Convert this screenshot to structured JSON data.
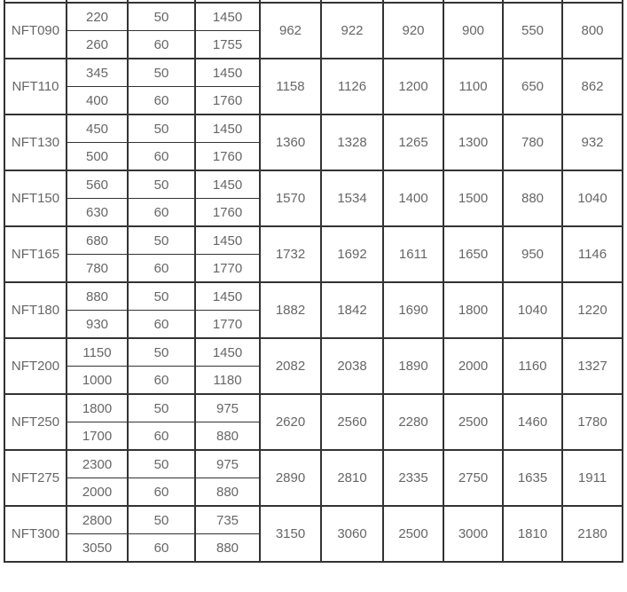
{
  "colors": {
    "border": "#333333",
    "text": "#666666",
    "background": "#ffffff"
  },
  "chart_data": {
    "type": "table",
    "title": "",
    "header_visible": false,
    "note": "top header row cut off at screenshot edge",
    "column_count": 10,
    "blocks": [
      {
        "model": "NFT090",
        "rows": [
          [
            "220",
            "50",
            "1450"
          ],
          [
            "260",
            "60",
            "1755"
          ]
        ],
        "merged": [
          "962",
          "922",
          "920",
          "900",
          "550",
          "800"
        ]
      },
      {
        "model": "NFT110",
        "rows": [
          [
            "345",
            "50",
            "1450"
          ],
          [
            "400",
            "60",
            "1760"
          ]
        ],
        "merged": [
          "1158",
          "1126",
          "1200",
          "1100",
          "650",
          "862"
        ]
      },
      {
        "model": "NFT130",
        "rows": [
          [
            "450",
            "50",
            "1450"
          ],
          [
            "500",
            "60",
            "1760"
          ]
        ],
        "merged": [
          "1360",
          "1328",
          "1265",
          "1300",
          "780",
          "932"
        ]
      },
      {
        "model": "NFT150",
        "rows": [
          [
            "560",
            "50",
            "1450"
          ],
          [
            "630",
            "60",
            "1760"
          ]
        ],
        "merged": [
          "1570",
          "1534",
          "1400",
          "1500",
          "880",
          "1040"
        ]
      },
      {
        "model": "NFT165",
        "rows": [
          [
            "680",
            "50",
            "1450"
          ],
          [
            "780",
            "60",
            "1770"
          ]
        ],
        "merged": [
          "1732",
          "1692",
          "1611",
          "1650",
          "950",
          "1146"
        ]
      },
      {
        "model": "NFT180",
        "rows": [
          [
            "880",
            "50",
            "1450"
          ],
          [
            "930",
            "60",
            "1770"
          ]
        ],
        "merged": [
          "1882",
          "1842",
          "1690",
          "1800",
          "1040",
          "1220"
        ]
      },
      {
        "model": "NFT200",
        "rows": [
          [
            "1150",
            "50",
            "1450"
          ],
          [
            "1000",
            "60",
            "1180"
          ]
        ],
        "merged": [
          "2082",
          "2038",
          "1890",
          "2000",
          "1160",
          "1327"
        ]
      },
      {
        "model": "NFT250",
        "rows": [
          [
            "1800",
            "50",
            "975"
          ],
          [
            "1700",
            "60",
            "880"
          ]
        ],
        "merged": [
          "2620",
          "2560",
          "2280",
          "2500",
          "1460",
          "1780"
        ]
      },
      {
        "model": "NFT275",
        "rows": [
          [
            "2300",
            "50",
            "975"
          ],
          [
            "2000",
            "60",
            "880"
          ]
        ],
        "merged": [
          "2890",
          "2810",
          "2335",
          "2750",
          "1635",
          "1911"
        ]
      },
      {
        "model": "NFT300",
        "rows": [
          [
            "2800",
            "50",
            "735"
          ],
          [
            "3050",
            "60",
            "880"
          ]
        ],
        "merged": [
          "3150",
          "3060",
          "2500",
          "3000",
          "1810",
          "2180"
        ]
      }
    ]
  }
}
